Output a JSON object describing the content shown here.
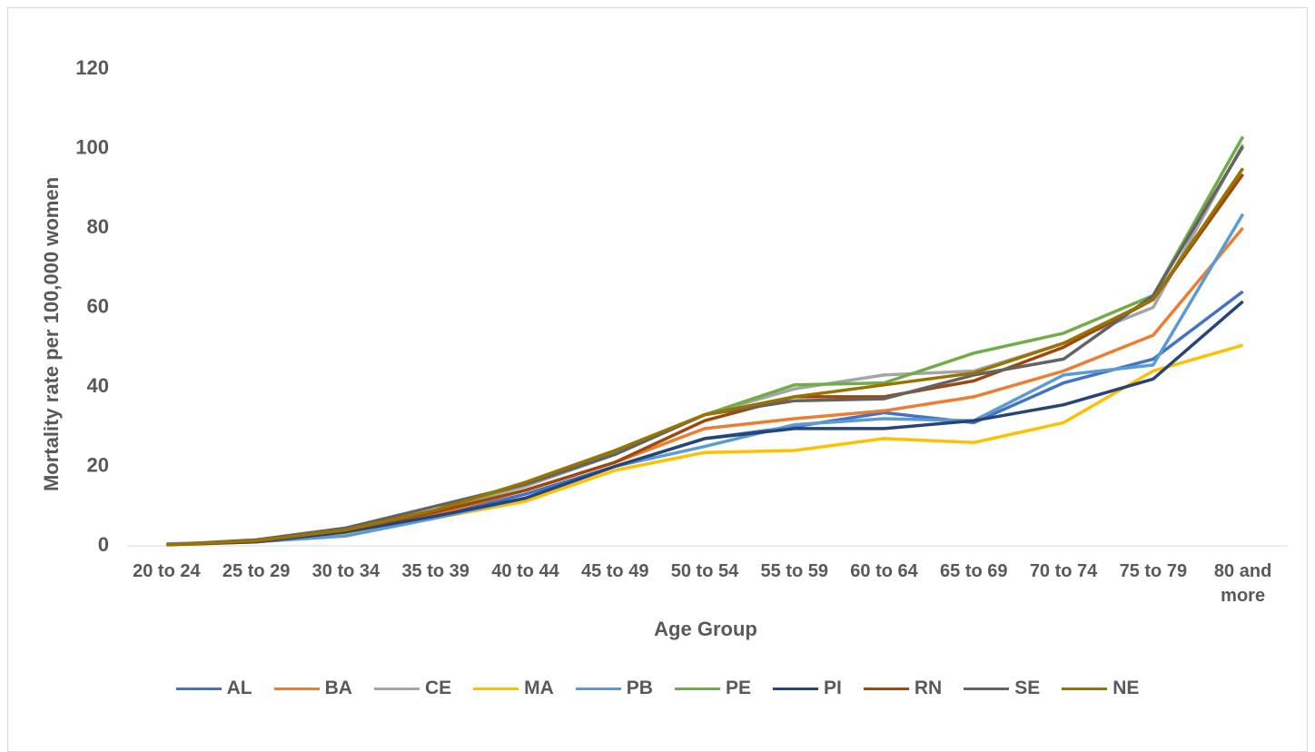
{
  "chart_data": {
    "type": "line",
    "y_label": "Mortality rate per 100,000 women",
    "x_label": "Age Group",
    "categories": [
      "20 to 24",
      "25 to 29",
      "30 to 34",
      "35 to 39",
      "40 to 44",
      "45 to 49",
      "50 to 54",
      "55 to 59",
      "60 to 64",
      "65 to 69",
      "70 to 74",
      "75 to 79",
      "80 and more"
    ],
    "series": [
      {
        "name": "AL",
        "color": "#4472c4",
        "values": [
          0.3,
          1,
          3.5,
          7.5,
          13,
          20,
          27,
          30,
          33.5,
          31,
          41,
          47,
          64
        ]
      },
      {
        "name": "BA",
        "color": "#ed7d31",
        "values": [
          0.3,
          1.2,
          3.5,
          8,
          14,
          21,
          29.5,
          32,
          34,
          37.5,
          44,
          53,
          80
        ]
      },
      {
        "name": "CE",
        "color": "#a5a5a5",
        "values": [
          0.3,
          1.3,
          4,
          9,
          15,
          23,
          33,
          39.5,
          43,
          44,
          51,
          60,
          101
        ]
      },
      {
        "name": "MA",
        "color": "#ffc000",
        "values": [
          0.2,
          1,
          3.3,
          7,
          11.2,
          19,
          23.5,
          24,
          27,
          26,
          31,
          44,
          50.5
        ]
      },
      {
        "name": "PB",
        "color": "#5b9bd5",
        "values": [
          0.5,
          1,
          2.5,
          7,
          12,
          20,
          25,
          30.5,
          32,
          31.5,
          43,
          45.5,
          83.5
        ]
      },
      {
        "name": "PE",
        "color": "#70ad47",
        "values": [
          0.3,
          1.3,
          4,
          9,
          15.5,
          23.5,
          33,
          40.5,
          41,
          48.5,
          53.5,
          63,
          103
        ]
      },
      {
        "name": "PI",
        "color": "#264478",
        "values": [
          0.3,
          1,
          3.5,
          7.5,
          12,
          20,
          27,
          29.5,
          29.5,
          31.5,
          35.5,
          42,
          61.5
        ]
      },
      {
        "name": "RN",
        "color": "#9e480e",
        "values": [
          0.3,
          1.2,
          4,
          8.5,
          14,
          21,
          31.5,
          37.5,
          37.5,
          41.5,
          50,
          62,
          93.5
        ]
      },
      {
        "name": "SE",
        "color": "#636363",
        "values": [
          0.3,
          1.5,
          4.5,
          10,
          15.5,
          23,
          33,
          36.5,
          37,
          43,
          47,
          63,
          100.5
        ]
      },
      {
        "name": "NE",
        "color": "#997300",
        "values": [
          0.3,
          1.3,
          4,
          9,
          16,
          24,
          33,
          37.5,
          40.5,
          43.5,
          51,
          62,
          95
        ]
      }
    ],
    "ylim": [
      0,
      120
    ],
    "yticks": [
      0,
      20,
      40,
      60,
      80,
      100,
      120
    ],
    "grid": false,
    "legend": "bottom"
  }
}
